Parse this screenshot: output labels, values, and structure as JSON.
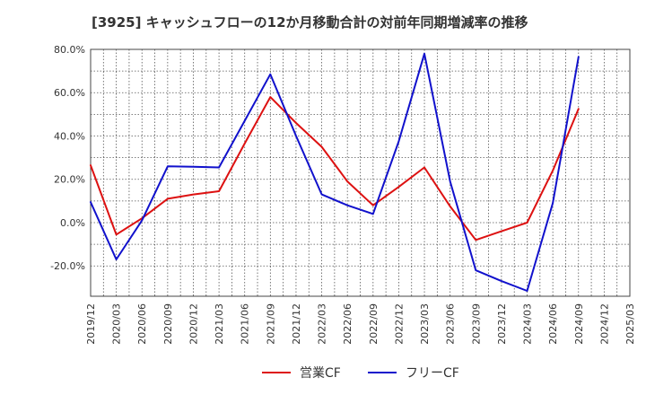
{
  "chart_data": {
    "type": "line",
    "title": "[3925]  キャッシュフローの12か月移動合計の対前年同期増減率の推移",
    "xlabel": "",
    "ylabel": "",
    "ylim": [
      -34,
      80
    ],
    "yticks": [
      -20,
      0,
      20,
      40,
      60,
      80
    ],
    "ytick_labels": [
      "-20.0%",
      "0.0%",
      "20.0%",
      "40.0%",
      "60.0%",
      "80.0%"
    ],
    "categories": [
      "2019/12",
      "2020/03",
      "2020/06",
      "2020/09",
      "2020/12",
      "2021/03",
      "2021/06",
      "2021/09",
      "2021/12",
      "2022/03",
      "2022/06",
      "2022/09",
      "2022/12",
      "2023/03",
      "2023/06",
      "2023/09",
      "2023/12",
      "2024/03",
      "2024/06",
      "2024/09",
      "2024/12",
      "2025/03"
    ],
    "grid": true,
    "legend_position": "bottom-center",
    "series": [
      {
        "name": "営業CF",
        "color": "#dd1111",
        "values": [
          26.5,
          -5.5,
          2.0,
          11.0,
          13.0,
          14.5,
          36.5,
          58.0,
          46.0,
          35.0,
          19.0,
          8.0,
          16.5,
          25.5,
          7.5,
          -8.0,
          -4.0,
          0.0,
          24.0,
          52.5,
          null,
          null
        ]
      },
      {
        "name": "フリーCF",
        "color": "#1111cc",
        "values": [
          9.5,
          -17.0,
          1.0,
          26.0,
          25.8,
          25.5,
          47.0,
          68.5,
          40.0,
          13.0,
          8.0,
          4.0,
          37.5,
          78.0,
          19.0,
          -22.0,
          -27.0,
          -31.5,
          9.0,
          76.5,
          null,
          null
        ]
      }
    ]
  }
}
